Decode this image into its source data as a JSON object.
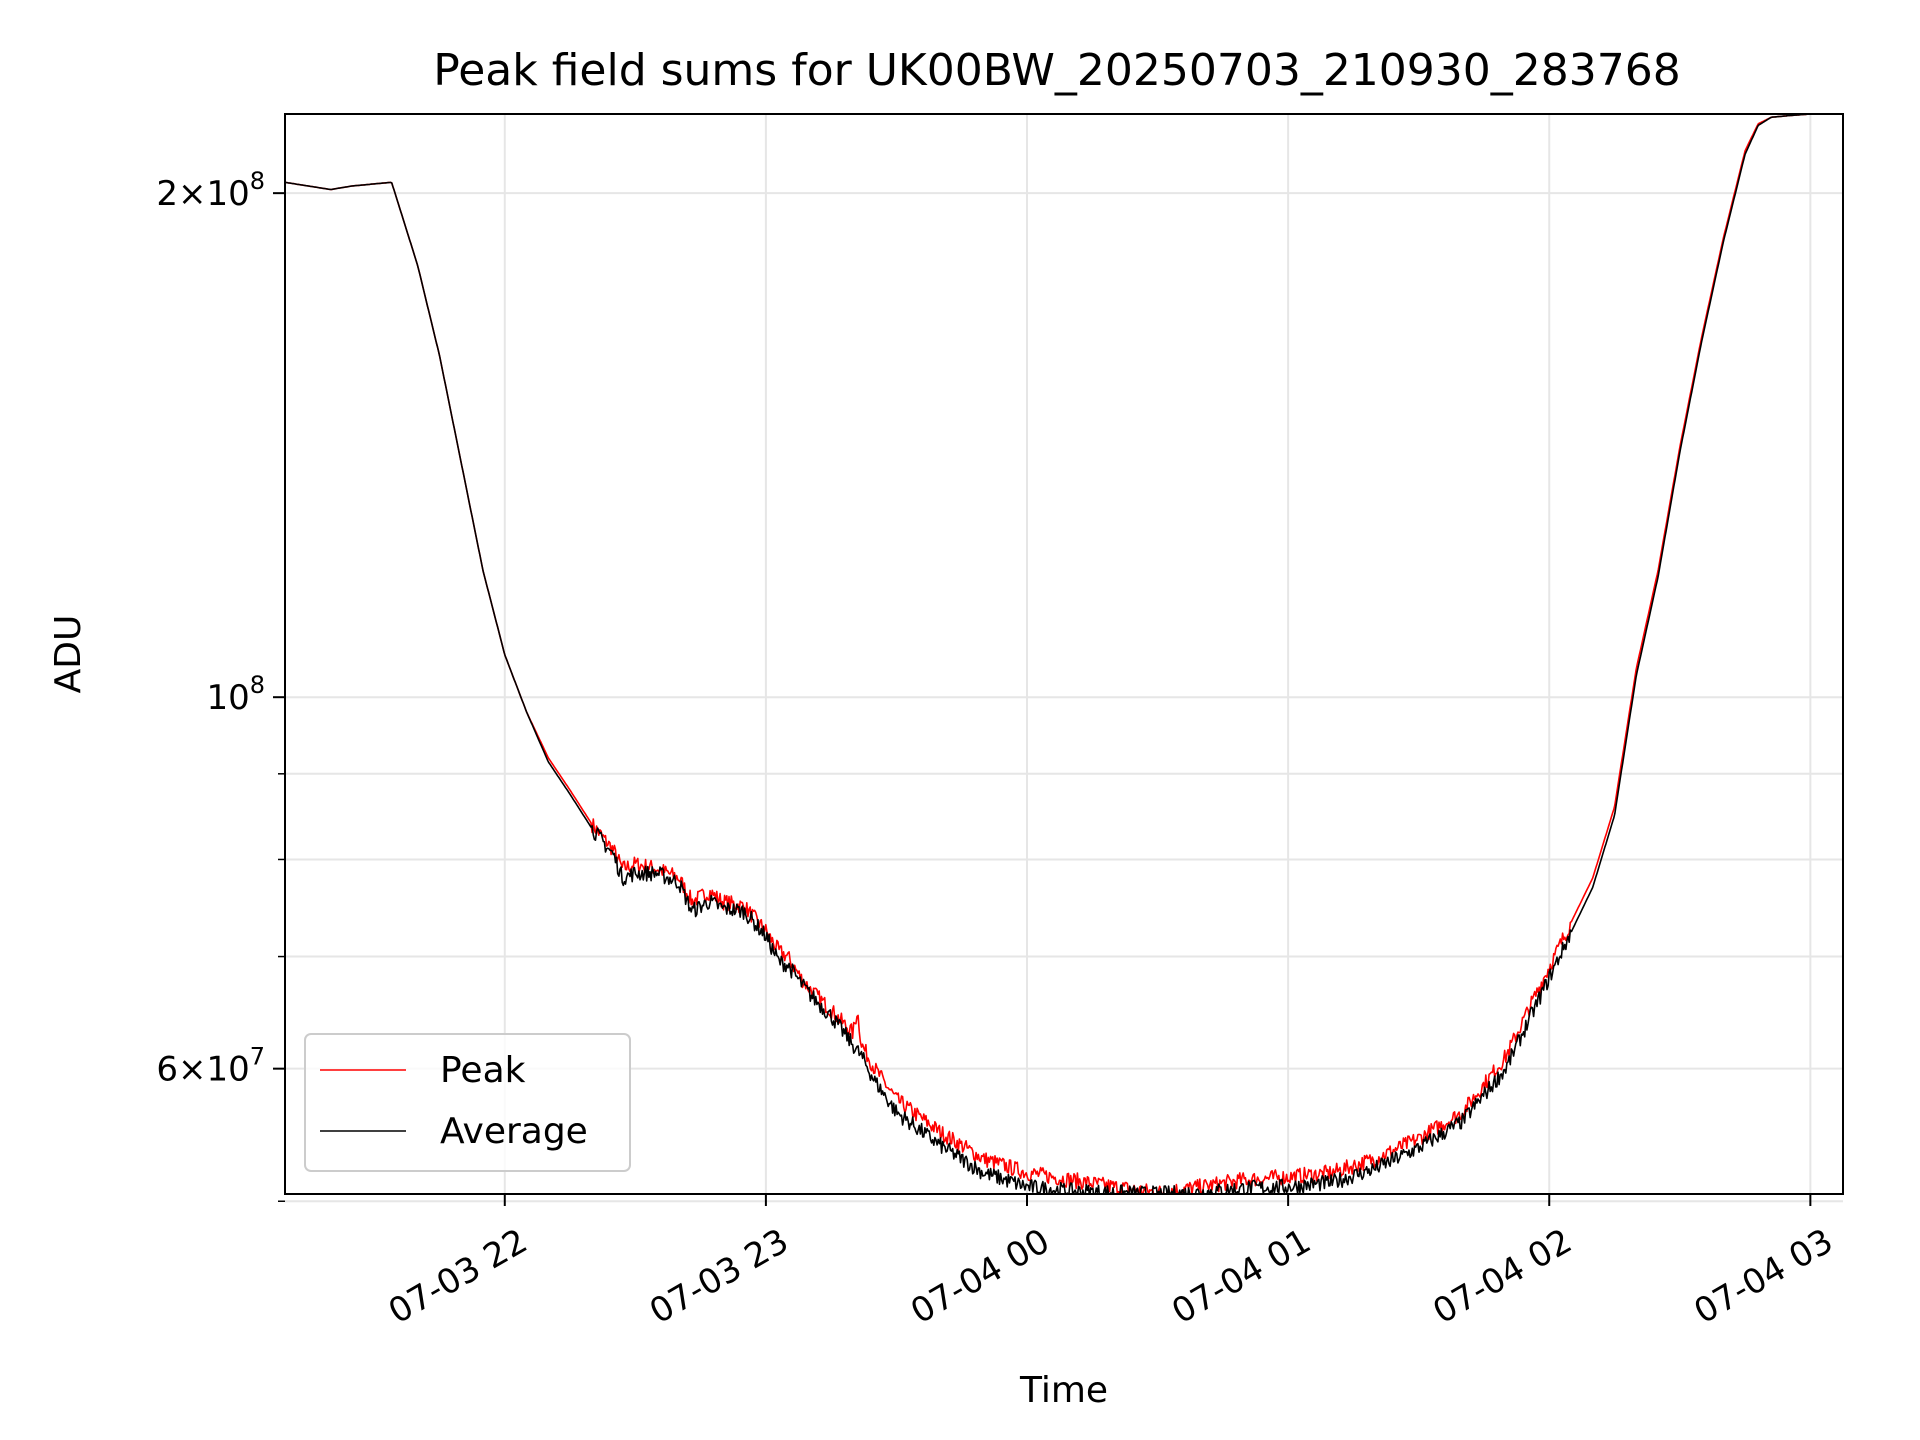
{
  "chart_data": {
    "type": "line",
    "title": "Peak field sums for UK00BW_20250703_210930_283768",
    "xlabel": "Time",
    "ylabel": "ADU",
    "yscale": "log",
    "ylim": [
      50500000,
      223000000
    ],
    "xlim": [
      "07-03 21:09:30",
      "07-04 03:07:30"
    ],
    "x_ticks": [
      "07-03 22",
      "07-03 23",
      "07-04 00",
      "07-04 01",
      "07-04 02",
      "07-04 03"
    ],
    "y_ticks": [
      {
        "value": 200000000,
        "mantissa": "2",
        "exponent": "8"
      },
      {
        "value": 100000000,
        "mantissa": "",
        "exponent": "8"
      },
      {
        "value": 60000000,
        "mantissa": "6",
        "exponent": "7"
      }
    ],
    "y_minor_ticks": [
      50000000,
      70000000,
      80000000,
      90000000
    ],
    "grid": true,
    "legend_position": "lower-left",
    "series": [
      {
        "name": "Peak",
        "color": "#ff0000",
        "x": [
          "07-03 21:09:30",
          "07-03 21:20",
          "07-03 21:25",
          "07-03 21:34",
          "07-03 21:40",
          "07-03 21:45",
          "07-03 21:50",
          "07-03 21:55",
          "07-03 22:00",
          "07-03 22:05",
          "07-03 22:10",
          "07-03 22:15",
          "07-03 22:20",
          "07-03 22:25",
          "07-03 22:27",
          "07-03 22:30",
          "07-03 22:35",
          "07-03 22:40",
          "07-03 22:43",
          "07-03 22:47",
          "07-03 22:50",
          "07-03 22:55",
          "07-03 23:00",
          "07-03 23:03",
          "07-03 23:05",
          "07-03 23:08",
          "07-03 23:10",
          "07-03 23:15",
          "07-03 23:20",
          "07-03 23:21",
          "07-03 23:22",
          "07-03 23:25",
          "07-03 23:30",
          "07-03 23:40",
          "07-03 23:50",
          "07-04 00:00",
          "07-04 00:10",
          "07-04 00:20",
          "07-04 00:30",
          "07-04 00:40",
          "07-04 00:50",
          "07-04 01:00",
          "07-04 01:10",
          "07-04 01:20",
          "07-04 01:30",
          "07-04 01:40",
          "07-04 01:50",
          "07-04 02:00",
          "07-04 02:10",
          "07-04 02:15",
          "07-04 02:20",
          "07-04 02:25",
          "07-04 02:30",
          "07-04 02:35",
          "07-04 02:40",
          "07-04 02:45",
          "07-04 02:48",
          "07-04 02:51",
          "07-04 02:55",
          "07-04 03:00",
          "07-04 03:07:30"
        ],
        "y": [
          203000000,
          201000000,
          202000000,
          203000000,
          181000000,
          160000000,
          138000000,
          119000000,
          106000000,
          98000000,
          92000000,
          88000000,
          84000000,
          81000000,
          79000000,
          79500000,
          79000000,
          78000000,
          75500000,
          76500000,
          75500000,
          75000000,
          72500000,
          70500000,
          70000000,
          68000000,
          67000000,
          65000000,
          63000000,
          65000000,
          62000000,
          60000000,
          57500000,
          55000000,
          53000000,
          52000000,
          51500000,
          51000000,
          50600000,
          51000000,
          51500000,
          51700000,
          52000000,
          53000000,
          54500000,
          56500000,
          61000000,
          69000000,
          78000000,
          86000000,
          104000000,
          119000000,
          141000000,
          164000000,
          188000000,
          212000000,
          220000000,
          222000000,
          222500000,
          223000000,
          223000000
        ]
      },
      {
        "name": "Average",
        "color": "#000000",
        "x": [
          "07-03 21:09:30",
          "07-03 21:20",
          "07-03 21:25",
          "07-03 21:34",
          "07-03 21:40",
          "07-03 21:45",
          "07-03 21:50",
          "07-03 21:55",
          "07-03 22:00",
          "07-03 22:05",
          "07-03 22:10",
          "07-03 22:15",
          "07-03 22:20",
          "07-03 22:25",
          "07-03 22:27",
          "07-03 22:30",
          "07-03 22:35",
          "07-03 22:40",
          "07-03 22:43",
          "07-03 22:47",
          "07-03 22:50",
          "07-03 22:55",
          "07-03 23:00",
          "07-03 23:03",
          "07-03 23:05",
          "07-03 23:08",
          "07-03 23:10",
          "07-03 23:15",
          "07-03 23:20",
          "07-03 23:21",
          "07-03 23:22",
          "07-03 23:25",
          "07-03 23:30",
          "07-03 23:40",
          "07-03 23:50",
          "07-04 00:00",
          "07-04 00:10",
          "07-04 00:20",
          "07-04 00:30",
          "07-04 00:40",
          "07-04 00:50",
          "07-04 01:00",
          "07-04 01:10",
          "07-04 01:20",
          "07-04 01:30",
          "07-04 01:40",
          "07-04 01:50",
          "07-04 02:00",
          "07-04 02:10",
          "07-04 02:15",
          "07-04 02:20",
          "07-04 02:25",
          "07-04 02:30",
          "07-04 02:35",
          "07-04 02:40",
          "07-04 02:45",
          "07-04 02:48",
          "07-04 02:51",
          "07-04 02:55",
          "07-04 03:00",
          "07-04 03:07:30"
        ],
        "y": [
          203000000,
          201000000,
          202000000,
          203000000,
          181000000,
          160000000,
          138000000,
          119000000,
          106000000,
          98000000,
          91500000,
          87500000,
          83500000,
          80500000,
          78000000,
          78500000,
          78500000,
          77500000,
          74500000,
          75500000,
          74800000,
          74500000,
          72000000,
          69500000,
          69200000,
          67500000,
          66500000,
          64500000,
          62000000,
          61500000,
          61000000,
          59000000,
          56500000,
          54000000,
          52000000,
          51000000,
          50700000,
          50600000,
          50500000,
          50600000,
          50900000,
          51000000,
          51300000,
          52300000,
          53800000,
          55800000,
          60000000,
          68000000,
          77000000,
          85000000,
          103000000,
          118000000,
          140000000,
          163000000,
          187000000,
          211000000,
          219500000,
          222000000,
          222500000,
          223000000,
          223000000
        ]
      }
    ]
  }
}
